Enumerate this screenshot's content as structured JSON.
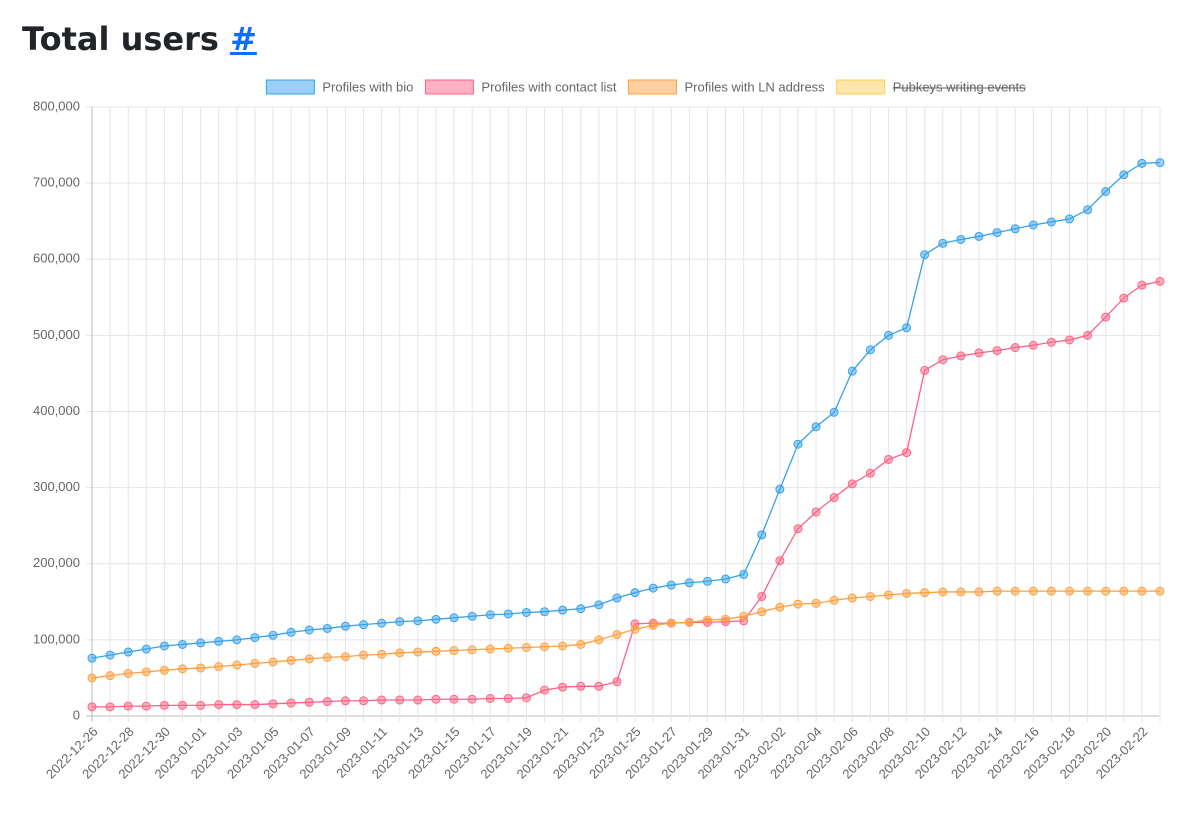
{
  "heading": {
    "title": "Total users",
    "anchor": "#"
  },
  "chart_data": {
    "type": "line",
    "categories": [
      "2022-12-26",
      null,
      "2022-12-28",
      null,
      "2022-12-30",
      null,
      "2023-01-01",
      null,
      "2023-01-03",
      null,
      "2023-01-05",
      null,
      "2023-01-07",
      null,
      "2023-01-09",
      null,
      "2023-01-11",
      null,
      "2023-01-13",
      null,
      "2023-01-15",
      null,
      "2023-01-17",
      null,
      "2023-01-19",
      null,
      "2023-01-21",
      null,
      "2023-01-23",
      null,
      "2023-01-25",
      null,
      "2023-01-27",
      null,
      "2023-01-29",
      null,
      "2023-01-31",
      null,
      "2023-02-02",
      null,
      "2023-02-04",
      null,
      "2023-02-06",
      null,
      "2023-02-08",
      null,
      "2023-02-10",
      null,
      "2023-02-12",
      null,
      "2023-02-14",
      null,
      "2023-02-16",
      null,
      "2023-02-18",
      null,
      "2023-02-20",
      null,
      "2023-02-22",
      null
    ],
    "series": [
      {
        "name": "Profiles with bio",
        "color": "#36a2eb",
        "values": [
          76000,
          80000,
          84000,
          88000,
          92000,
          94000,
          96000,
          98000,
          100000,
          103000,
          106000,
          110000,
          113000,
          115000,
          118000,
          120000,
          122000,
          124000,
          125000,
          127000,
          129000,
          131000,
          133000,
          134000,
          136000,
          137000,
          139000,
          141000,
          146000,
          155000,
          162000,
          168000,
          172000,
          175000,
          177000,
          180000,
          186000,
          238000,
          298000,
          357000,
          380000,
          399000,
          453000,
          481000,
          500000,
          510000,
          606000,
          621000,
          626000,
          630000,
          635000,
          640000,
          645000,
          649000,
          653000,
          665000,
          689000,
          711000,
          726000,
          727000
        ]
      },
      {
        "name": "Profiles with contact list",
        "color": "#ff6384",
        "values": [
          12000,
          12000,
          13000,
          13000,
          14000,
          14000,
          14000,
          15000,
          15000,
          15000,
          16000,
          17000,
          18000,
          19000,
          20000,
          20000,
          21000,
          21000,
          21000,
          22000,
          22000,
          22000,
          23000,
          23000,
          24000,
          34000,
          38000,
          39000,
          39000,
          45000,
          121000,
          122000,
          122000,
          123000,
          123000,
          124000,
          125000,
          157000,
          204000,
          246000,
          268000,
          287000,
          305000,
          319000,
          337000,
          346000,
          454000,
          468000,
          473000,
          477000,
          480000,
          484000,
          487000,
          491000,
          494000,
          500000,
          524000,
          549000,
          566000,
          571000
        ]
      },
      {
        "name": "Profiles with LN address",
        "color": "#ff9f40",
        "values": [
          50000,
          53000,
          56000,
          58000,
          60000,
          62000,
          63000,
          65000,
          67000,
          69000,
          71000,
          73000,
          75000,
          77000,
          78000,
          80000,
          81000,
          83000,
          84000,
          85000,
          86000,
          87000,
          88000,
          89000,
          90000,
          91000,
          92000,
          94000,
          100000,
          107000,
          114000,
          119000,
          122000,
          123000,
          126000,
          127000,
          131000,
          137000,
          143000,
          147000,
          148000,
          152000,
          155000,
          157000,
          159000,
          161000,
          162000,
          163000,
          163000,
          163000,
          164000,
          164000,
          164000,
          164000,
          164000,
          164000,
          164000,
          164000,
          164000,
          164000
        ]
      },
      {
        "name": "Pubkeys writing events",
        "color": "#ffcd56",
        "hidden": true
      }
    ],
    "ylim": [
      0,
      800000
    ],
    "yticks": [
      0,
      {
        "value": 100000,
        "label": "100,000"
      },
      {
        "value": 200000,
        "label": "200,000"
      },
      {
        "value": 300000,
        "label": "300,000"
      },
      {
        "value": 400000,
        "label": "400,000"
      },
      {
        "value": 500000,
        "label": "500,000"
      },
      {
        "value": 600000,
        "label": "600,000"
      },
      {
        "value": 700000,
        "label": "700,000"
      },
      {
        "value": 800000,
        "label": "800,000"
      }
    ],
    "grid": true,
    "legend": "top"
  }
}
